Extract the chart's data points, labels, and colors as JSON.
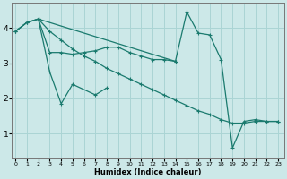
{
  "xlabel": "Humidex (Indice chaleur)",
  "bg_color": "#cce8e8",
  "grid_color": "#aad4d4",
  "line_color": "#1a7a6e",
  "x_ticks": [
    0,
    1,
    2,
    3,
    4,
    5,
    6,
    7,
    8,
    9,
    10,
    11,
    12,
    13,
    14,
    15,
    16,
    17,
    18,
    19,
    20,
    21,
    22,
    23
  ],
  "y_ticks": [
    1,
    2,
    3,
    4
  ],
  "ylim": [
    0.3,
    4.7
  ],
  "xlim": [
    -0.3,
    23.5
  ],
  "series": [
    {
      "x": [
        0,
        1,
        2,
        3,
        4,
        5,
        6,
        7,
        8,
        9,
        10,
        11,
        12,
        13,
        14,
        15,
        16,
        17,
        18,
        19,
        20,
        21,
        22,
        23
      ],
      "y": [
        3.9,
        4.15,
        4.25,
        3.9,
        3.65,
        3.4,
        3.2,
        3.05,
        2.85,
        2.7,
        2.55,
        2.4,
        2.25,
        2.1,
        1.95,
        1.8,
        1.65,
        1.55,
        1.4,
        1.3,
        1.3,
        1.35,
        1.35,
        1.35
      ]
    },
    {
      "x": [
        0,
        1,
        2,
        3,
        4,
        5,
        6,
        7,
        8,
        9,
        10,
        11,
        12,
        13,
        14
      ],
      "y": [
        3.9,
        4.15,
        4.25,
        3.3,
        3.3,
        3.25,
        3.3,
        3.35,
        3.45,
        3.45,
        3.3,
        3.2,
        3.1,
        3.1,
        3.05
      ]
    },
    {
      "x": [
        2,
        3,
        4,
        5,
        7,
        8
      ],
      "y": [
        4.25,
        2.75,
        1.85,
        2.4,
        2.1,
        2.3
      ]
    },
    {
      "x": [
        0,
        1,
        2,
        14,
        15,
        16,
        17,
        18,
        19,
        20,
        21,
        22,
        23
      ],
      "y": [
        3.9,
        4.15,
        4.25,
        3.05,
        4.45,
        3.85,
        3.8,
        3.1,
        0.6,
        1.35,
        1.4,
        1.35,
        1.35
      ]
    }
  ]
}
